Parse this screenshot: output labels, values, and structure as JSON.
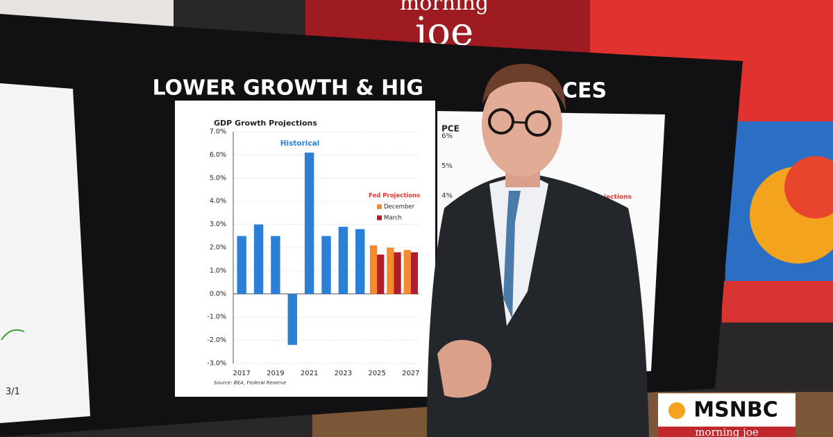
{
  "chart_data": {
    "type": "bar",
    "title": "GDP Growth Projections",
    "categories": [
      "2017",
      null,
      "2019",
      null,
      "2021",
      null,
      "2023",
      null,
      "2025",
      null,
      "2027"
    ],
    "series": [
      {
        "name": "Historical",
        "color": "#2b7fd4",
        "values": [
          2.5,
          3.0,
          2.5,
          -2.2,
          6.1,
          2.5,
          2.9,
          2.8,
          null,
          null,
          null
        ]
      },
      {
        "name": "December",
        "color": "#f58a2e",
        "values": [
          null,
          null,
          null,
          null,
          null,
          null,
          null,
          null,
          2.1,
          2.0,
          1.9
        ]
      },
      {
        "name": "March",
        "color": "#b01e2b",
        "values": [
          null,
          null,
          null,
          null,
          null,
          null,
          null,
          null,
          1.7,
          1.8,
          1.8
        ]
      }
    ],
    "legend_title": "Fed Projections",
    "source": "Source: BEA, Federal Reserve",
    "ylim": [
      -3,
      7
    ],
    "yticks": [
      {
        "value": -3,
        "label": "-3.0%"
      },
      {
        "value": -2,
        "label": "-2.0%"
      },
      {
        "value": -1,
        "label": "-1.0%"
      },
      {
        "value": 0,
        "label": "0.0%"
      },
      {
        "value": 1,
        "label": "1.0%"
      },
      {
        "value": 2,
        "label": "2.0%"
      },
      {
        "value": 3,
        "label": "3.0%"
      },
      {
        "value": 4,
        "label": "4.0%"
      },
      {
        "value": 5,
        "label": "5.0%"
      },
      {
        "value": 6,
        "label": "6.0%"
      },
      {
        "value": 7,
        "label": "7.0%"
      }
    ],
    "grid": true
  },
  "screen": {
    "headline_left": "LOWER GROWTH & HIG",
    "headline_right": "CES",
    "side_chart": {
      "title": "PCE",
      "yticks": [
        "6%",
        "5%",
        "4%"
      ],
      "note": "jections"
    },
    "left_label": "3/1"
  },
  "brand": {
    "top_line1": "morning",
    "top_line2": "joe",
    "network": "MSNBC",
    "show": "morning joe"
  }
}
